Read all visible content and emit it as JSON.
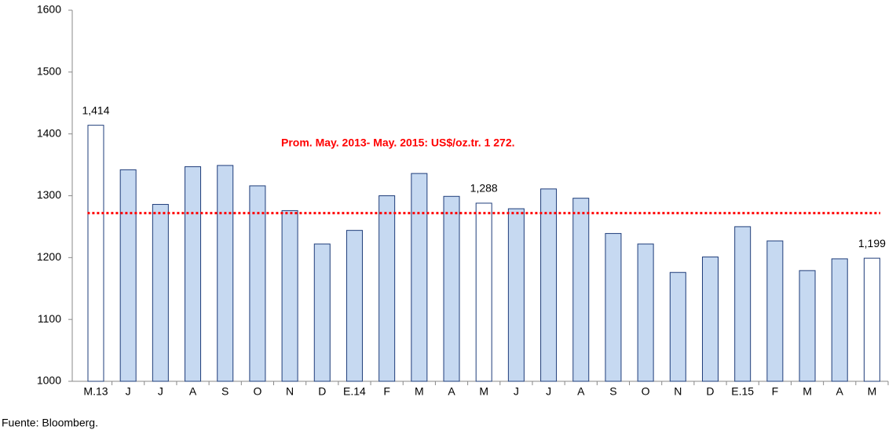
{
  "chart_data": {
    "type": "bar",
    "categories": [
      "M.13",
      "J",
      "J",
      "A",
      "S",
      "O",
      "N",
      "D",
      "E.14",
      "F",
      "M",
      "A",
      "M",
      "J",
      "J",
      "A",
      "S",
      "O",
      "N",
      "D",
      "E.15",
      "F",
      "M",
      "A",
      "M"
    ],
    "values": [
      1414,
      1342,
      1286,
      1347,
      1349,
      1316,
      1276,
      1222,
      1244,
      1300,
      1336,
      1299,
      1288,
      1279,
      1311,
      1296,
      1239,
      1222,
      1176,
      1201,
      1250,
      1227,
      1179,
      1198,
      1199
    ],
    "value_labels": [
      "1,414",
      null,
      null,
      null,
      null,
      null,
      null,
      null,
      null,
      null,
      null,
      null,
      "1,288",
      null,
      null,
      null,
      null,
      null,
      null,
      null,
      null,
      null,
      null,
      null,
      "1,199"
    ],
    "colors": [
      "#ffffff",
      "#c6d9f1",
      "#c6d9f1",
      "#c6d9f1",
      "#c6d9f1",
      "#c6d9f1",
      "#c6d9f1",
      "#c6d9f1",
      "#c6d9f1",
      "#c6d9f1",
      "#c6d9f1",
      "#c6d9f1",
      "#ffffff",
      "#c6d9f1",
      "#c6d9f1",
      "#c6d9f1",
      "#c6d9f1",
      "#c6d9f1",
      "#c6d9f1",
      "#c6d9f1",
      "#c6d9f1",
      "#c6d9f1",
      "#c6d9f1",
      "#c6d9f1",
      "#ffffff"
    ],
    "ylim": [
      1000,
      1600
    ],
    "yticks": [
      1000,
      1100,
      1200,
      1300,
      1400,
      1500,
      1600
    ],
    "average": 1272,
    "average_color": "#ff0000",
    "annotation": "Prom. May. 2013- May. 2015: US$/oz.tr. 1 272.",
    "source": "Fuente: Bloomberg."
  }
}
